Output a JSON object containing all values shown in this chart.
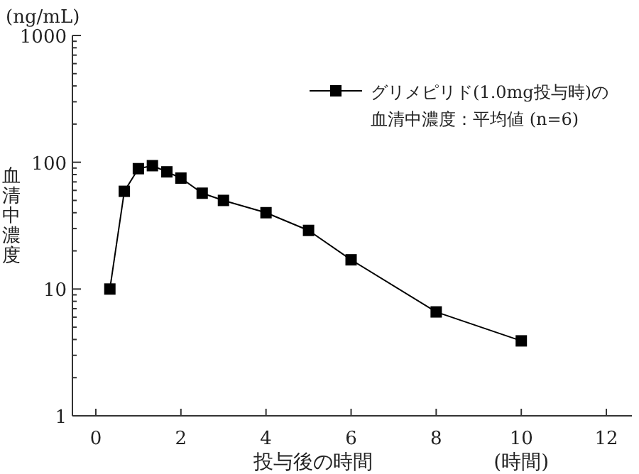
{
  "chart_data": {
    "type": "line",
    "ylabel": "(ng/mL)",
    "xlabel": "投与後の時間",
    "annotations": [
      "血清中濃度",
      "(時間)"
    ],
    "log": "y",
    "marker": "square",
    "line_style": "solid",
    "legend": "top right",
    "x": [
      0.33,
      0.67,
      1,
      1.33,
      1.67,
      2,
      2.5,
      3,
      4,
      5,
      6,
      8,
      10
    ],
    "series": [
      {
        "name": "グリメピリド(1.0mg投与時)の血清中濃度：平均値 (n=6)",
        "color": "#000000",
        "values": [
          10,
          59,
          89,
          94,
          84,
          75,
          57,
          50,
          40,
          29,
          17,
          6.6,
          3.9
        ]
      }
    ],
    "xlim": [
      -0.55,
      12.6
    ],
    "xticks": [
      0,
      2,
      4,
      6,
      8,
      10,
      12
    ],
    "ylim": [
      1,
      1000
    ],
    "yticks": [
      1,
      10,
      100,
      1000
    ]
  }
}
